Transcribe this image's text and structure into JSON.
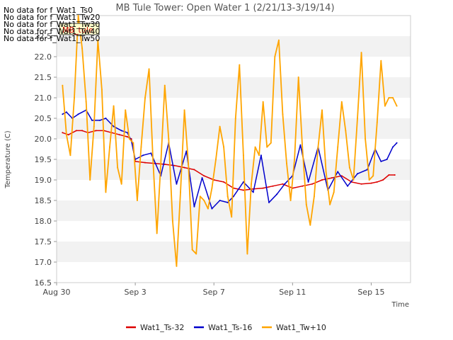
{
  "chart_data": {
    "type": "line",
    "title": "MB Tule Tower: Open Water 1 (2/21/13-3/19/14)",
    "xlabel": "Time",
    "ylabel": "Temperature (C)",
    "ylim": [
      16.5,
      23.0
    ],
    "xlim_days": [
      0,
      18
    ],
    "y_ticks": [
      16.5,
      17.0,
      17.5,
      18.0,
      18.5,
      19.0,
      19.5,
      20.0,
      20.5,
      21.0,
      21.5,
      22.0,
      22.5
    ],
    "x_ticks": [
      {
        "label": "Aug 30",
        "day": 0
      },
      {
        "label": "Sep 3",
        "day": 4
      },
      {
        "label": "Sep 7",
        "day": 8
      },
      {
        "label": "Sep 11",
        "day": 12
      },
      {
        "label": "Sep 15",
        "day": 16
      }
    ],
    "grid": "horizontal bands",
    "legend_position": "bottom",
    "no_data_messages": [
      "No data for f_Wat1_Ts0",
      "No data for f_Wat1_Tw20",
      "No data for f_Wat1_Tw30",
      "No data for f_Wat1_Tw40",
      "No data for f_Wat1_Tw50"
    ],
    "tooltip_label": "MB_tule",
    "series": [
      {
        "name": "Wat1_Ts-32",
        "color": "#dd0000",
        "x": [
          0.3,
          0.6,
          1.0,
          1.3,
          1.6,
          2.0,
          2.4,
          2.8,
          3.2,
          3.6,
          3.8,
          4.0,
          4.5,
          5.0,
          5.5,
          6.0,
          6.5,
          7.0,
          7.5,
          8.0,
          8.5,
          9.0,
          9.5,
          10.0,
          10.5,
          11.0,
          11.5,
          12.0,
          12.5,
          13.0,
          13.5,
          14.0,
          14.5,
          15.0,
          15.5,
          16.0,
          16.3,
          16.6,
          16.9,
          17.2
        ],
        "y": [
          20.15,
          20.1,
          20.2,
          20.2,
          20.15,
          20.2,
          20.2,
          20.15,
          20.1,
          20.05,
          20.0,
          19.45,
          19.42,
          19.4,
          19.38,
          19.35,
          19.3,
          19.25,
          19.1,
          19.0,
          18.95,
          18.8,
          18.75,
          18.78,
          18.8,
          18.85,
          18.9,
          18.8,
          18.85,
          18.9,
          19.0,
          19.05,
          19.1,
          18.95,
          18.9,
          18.92,
          18.95,
          19.0,
          19.12,
          19.12
        ]
      },
      {
        "name": "Wat1_Ts-16",
        "color": "#0000cc",
        "x": [
          0.3,
          0.5,
          0.8,
          1.1,
          1.5,
          1.8,
          2.2,
          2.5,
          2.9,
          3.3,
          3.6,
          3.8,
          4.0,
          4.4,
          4.8,
          5.3,
          5.7,
          6.1,
          6.6,
          7.0,
          7.4,
          7.9,
          8.3,
          8.7,
          9.0,
          9.5,
          10.0,
          10.4,
          10.8,
          11.2,
          11.6,
          12.0,
          12.4,
          12.8,
          13.3,
          13.8,
          14.3,
          14.8,
          15.3,
          15.8,
          16.2,
          16.5,
          16.8,
          17.1,
          17.3
        ],
        "y": [
          20.6,
          20.65,
          20.5,
          20.6,
          20.7,
          20.45,
          20.45,
          20.5,
          20.3,
          20.2,
          20.15,
          19.95,
          19.5,
          19.6,
          19.65,
          19.1,
          19.9,
          18.9,
          19.7,
          18.35,
          19.05,
          18.3,
          18.5,
          18.45,
          18.6,
          18.95,
          18.7,
          19.6,
          18.45,
          18.65,
          18.9,
          19.1,
          19.85,
          18.95,
          19.8,
          18.75,
          19.2,
          18.85,
          19.15,
          19.25,
          19.75,
          19.45,
          19.5,
          19.8,
          19.9
        ]
      },
      {
        "name": "Wat1_Tw+10",
        "color": "#ffa500",
        "x": [
          0.3,
          0.5,
          0.7,
          0.9,
          1.1,
          1.3,
          1.5,
          1.7,
          1.9,
          2.1,
          2.3,
          2.5,
          2.7,
          2.9,
          3.1,
          3.3,
          3.5,
          3.7,
          3.9,
          4.1,
          4.3,
          4.5,
          4.7,
          4.9,
          5.1,
          5.3,
          5.5,
          5.7,
          5.9,
          6.1,
          6.3,
          6.5,
          6.7,
          6.9,
          7.1,
          7.3,
          7.5,
          7.7,
          7.9,
          8.1,
          8.3,
          8.5,
          8.7,
          8.9,
          9.1,
          9.3,
          9.5,
          9.7,
          9.9,
          10.1,
          10.3,
          10.5,
          10.7,
          10.9,
          11.1,
          11.3,
          11.5,
          11.7,
          11.9,
          12.1,
          12.3,
          12.5,
          12.7,
          12.9,
          13.1,
          13.3,
          13.5,
          13.7,
          13.9,
          14.1,
          14.3,
          14.5,
          14.7,
          14.9,
          15.1,
          15.3,
          15.5,
          15.7,
          15.9,
          16.1,
          16.3,
          16.5,
          16.7,
          16.9,
          17.1,
          17.3
        ],
        "y": [
          21.3,
          20.1,
          19.6,
          21.0,
          23.0,
          22.2,
          20.9,
          19.0,
          20.3,
          22.4,
          21.2,
          18.7,
          19.8,
          20.8,
          19.3,
          18.9,
          20.7,
          20.0,
          19.9,
          18.5,
          19.8,
          21.0,
          21.7,
          19.5,
          17.7,
          19.4,
          21.3,
          20.0,
          18.0,
          16.9,
          18.7,
          20.7,
          19.4,
          17.3,
          17.2,
          18.6,
          18.5,
          18.3,
          18.8,
          19.5,
          20.3,
          19.8,
          18.6,
          18.1,
          20.5,
          21.8,
          19.6,
          17.2,
          18.9,
          19.8,
          19.6,
          20.9,
          19.8,
          19.9,
          22.0,
          22.4,
          20.6,
          19.4,
          18.5,
          19.5,
          21.5,
          19.8,
          18.4,
          17.9,
          18.6,
          19.8,
          20.7,
          19.2,
          18.4,
          18.7,
          19.8,
          20.9,
          20.2,
          19.3,
          19.0,
          20.5,
          22.1,
          20.0,
          19.0,
          19.1,
          20.4,
          21.9,
          20.8,
          21.0,
          21.0,
          20.8
        ]
      }
    ]
  }
}
